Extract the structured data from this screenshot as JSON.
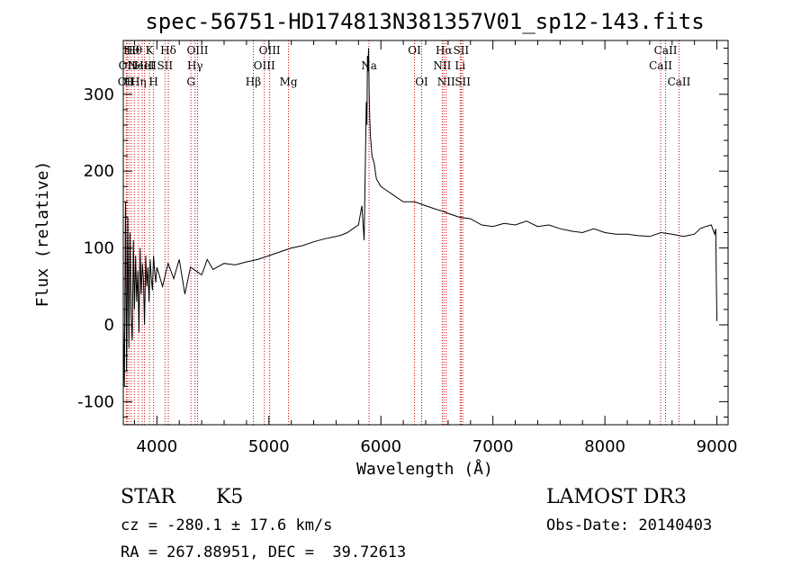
{
  "chart_data": {
    "type": "line",
    "title": "spec-56751-HD174813N381357V01_sp12-143.fits",
    "xlabel": "Wavelength (Å)",
    "ylabel": "Flux (relative)",
    "xlim": [
      3700,
      9100
    ],
    "ylim": [
      -130,
      370
    ],
    "x_ticks": [
      4000,
      5000,
      6000,
      7000,
      8000,
      9000
    ],
    "y_ticks": [
      -100,
      0,
      100,
      200,
      300
    ],
    "grid": false,
    "line_color": "#000000",
    "marker_color": "#cc0000",
    "series": [
      {
        "x": [
          3700,
          3710,
          3720,
          3730,
          3740,
          3750,
          3760,
          3770,
          3780,
          3790,
          3800,
          3810,
          3820,
          3830,
          3840,
          3850,
          3860,
          3870,
          3880,
          3890,
          3900,
          3910,
          3920,
          3930,
          3940,
          3950,
          3960,
          3970,
          3980,
          3990,
          4000,
          4050,
          4100,
          4150,
          4200,
          4250,
          4300,
          4350,
          4400,
          4450,
          4500,
          4600,
          4700,
          4800,
          4900,
          5000,
          5100,
          5200,
          5300,
          5400,
          5500,
          5600,
          5650,
          5700,
          5750,
          5800,
          5830,
          5850,
          5860,
          5870,
          5875,
          5880,
          5885,
          5890,
          5895,
          5900,
          5905,
          5910,
          5920,
          5940,
          5960,
          5980,
          6000,
          6050,
          6100,
          6150,
          6200,
          6300,
          6400,
          6500,
          6550,
          6600,
          6700,
          6800,
          6900,
          7000,
          7100,
          7200,
          7300,
          7400,
          7500,
          7600,
          7700,
          7800,
          7900,
          8000,
          8100,
          8200,
          8300,
          8400,
          8500,
          8600,
          8700,
          8800,
          8850,
          8900,
          8950,
          8980,
          8990,
          8995,
          9000
        ],
        "y": [
          5,
          -80,
          160,
          -60,
          140,
          -30,
          120,
          10,
          -20,
          110,
          20,
          90,
          30,
          70,
          -10,
          100,
          40,
          80,
          60,
          0,
          90,
          50,
          75,
          30,
          85,
          60,
          45,
          90,
          70,
          55,
          75,
          50,
          80,
          60,
          85,
          40,
          75,
          70,
          65,
          85,
          72,
          80,
          78,
          82,
          85,
          90,
          95,
          100,
          103,
          108,
          112,
          115,
          117,
          120,
          125,
          130,
          155,
          110,
          200,
          290,
          260,
          350,
          330,
          360,
          300,
          270,
          250,
          240,
          220,
          210,
          190,
          185,
          180,
          175,
          170,
          165,
          160,
          160,
          155,
          150,
          148,
          145,
          140,
          138,
          130,
          128,
          132,
          130,
          135,
          128,
          130,
          125,
          122,
          120,
          125,
          120,
          118,
          118,
          116,
          115,
          120,
          118,
          115,
          118,
          125,
          128,
          130,
          118,
          125,
          60,
          5
        ]
      }
    ],
    "line_markers": [
      {
        "w": 3727,
        "label": "OII",
        "row": 3
      },
      {
        "w": 3734,
        "label": "OII",
        "row": 2
      },
      {
        "w": 3750,
        "label": "H",
        "row": 3
      },
      {
        "w": 3771,
        "label": "Hθ",
        "row": 1
      },
      {
        "w": 3798,
        "label": "Hθ",
        "row": 1
      },
      {
        "w": 3835,
        "label": "Hη",
        "row": 3
      },
      {
        "w": 3869,
        "label": "NeIII",
        "row": 2
      },
      {
        "w": 3889,
        "label": "HeI",
        "row": 2
      },
      {
        "w": 3934,
        "label": "K",
        "row": 1
      },
      {
        "w": 3970,
        "label": "H",
        "row": 3
      },
      {
        "w": 4072,
        "label": "SII",
        "row": 2
      },
      {
        "w": 4102,
        "label": "Hδ",
        "row": 1
      },
      {
        "w": 4304,
        "label": "G",
        "row": 3
      },
      {
        "w": 4341,
        "label": "Hγ",
        "row": 2
      },
      {
        "w": 4363,
        "label": "OIII",
        "row": 1
      },
      {
        "w": 4861,
        "label": "Hβ",
        "row": 3
      },
      {
        "w": 4959,
        "label": "OIII",
        "row": 2
      },
      {
        "w": 5007,
        "label": "OIII",
        "row": 1
      },
      {
        "w": 5175,
        "label": "Mg",
        "row": 3
      },
      {
        "w": 5894,
        "label": "Na",
        "row": 2
      },
      {
        "w": 6300,
        "label": "OI",
        "row": 1
      },
      {
        "w": 6364,
        "label": "OI",
        "row": 3
      },
      {
        "w": 6548,
        "label": "NII",
        "row": 2
      },
      {
        "w": 6563,
        "label": "Hα",
        "row": 1
      },
      {
        "w": 6583,
        "label": "NII",
        "row": 3
      },
      {
        "w": 6708,
        "label": "Li",
        "row": 2
      },
      {
        "w": 6716,
        "label": "SII",
        "row": 1
      },
      {
        "w": 6731,
        "label": "SII",
        "row": 3
      },
      {
        "w": 8498,
        "label": "CaII",
        "row": 2
      },
      {
        "w": 8542,
        "label": "CaII",
        "row": 1
      },
      {
        "w": 8662,
        "label": "CaII",
        "row": 3
      }
    ]
  },
  "info": {
    "obj_class": "STAR",
    "subclass": "K5",
    "survey": "LAMOST DR3",
    "cz": "cz = -280.1 ± 17.6 km/s",
    "obs_date": "Obs-Date: 20140403",
    "coords": "RA = 267.88951, DEC =  39.72613"
  }
}
